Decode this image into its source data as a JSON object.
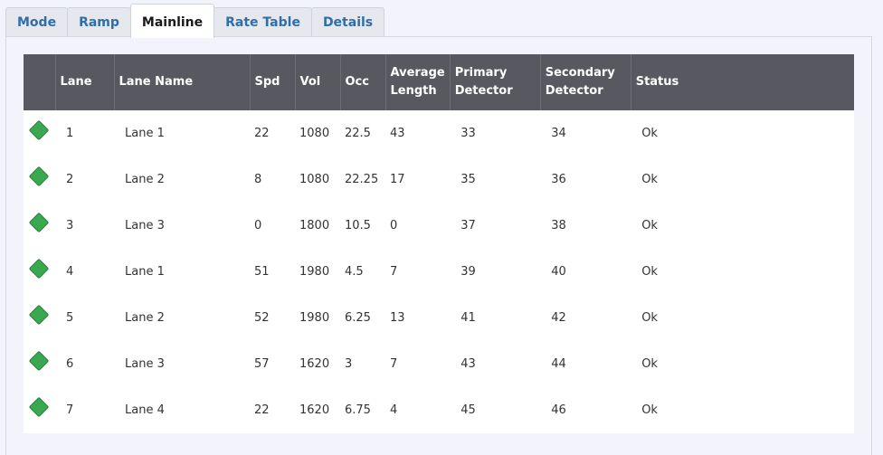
{
  "tabs": [
    {
      "label": "Mode"
    },
    {
      "label": "Ramp"
    },
    {
      "label": "Mainline"
    },
    {
      "label": "Rate Table"
    },
    {
      "label": "Details"
    }
  ],
  "active_tab": "Mainline",
  "table": {
    "headers": {
      "lane": "Lane",
      "lane_name": "Lane Name",
      "spd": "Spd",
      "vol": "Vol",
      "occ": "Occ",
      "avg_length_1": "Average",
      "avg_length_2": "Length",
      "primary_1": "Primary",
      "primary_2": "Detector",
      "secondary_1": "Secondary",
      "secondary_2": "Detector",
      "status": "Status"
    },
    "status_icon": "green-diamond-icon",
    "status_color": "#3aa84e",
    "header_color": "#585960",
    "rows": [
      {
        "lane": "1",
        "name": "Lane 1",
        "spd": "22",
        "vol": "1080",
        "occ": "22.5",
        "avg": "43",
        "primary": "33",
        "secondary": "34",
        "status": "Ok"
      },
      {
        "lane": "2",
        "name": "Lane 2",
        "spd": "8",
        "vol": "1080",
        "occ": "22.25",
        "avg": "17",
        "primary": "35",
        "secondary": "36",
        "status": "Ok"
      },
      {
        "lane": "3",
        "name": "Lane 3",
        "spd": "0",
        "vol": "1800",
        "occ": "10.5",
        "avg": "0",
        "primary": "37",
        "secondary": "38",
        "status": "Ok"
      },
      {
        "lane": "4",
        "name": "Lane 1",
        "spd": "51",
        "vol": "1980",
        "occ": "4.5",
        "avg": "7",
        "primary": "39",
        "secondary": "40",
        "status": "Ok"
      },
      {
        "lane": "5",
        "name": "Lane 2",
        "spd": "52",
        "vol": "1980",
        "occ": "6.25",
        "avg": "13",
        "primary": "41",
        "secondary": "42",
        "status": "Ok"
      },
      {
        "lane": "6",
        "name": "Lane 3",
        "spd": "57",
        "vol": "1620",
        "occ": "3",
        "avg": "7",
        "primary": "43",
        "secondary": "44",
        "status": "Ok"
      },
      {
        "lane": "7",
        "name": "Lane 4",
        "spd": "22",
        "vol": "1620",
        "occ": "6.75",
        "avg": "4",
        "primary": "45",
        "secondary": "46",
        "status": "Ok"
      }
    ]
  }
}
